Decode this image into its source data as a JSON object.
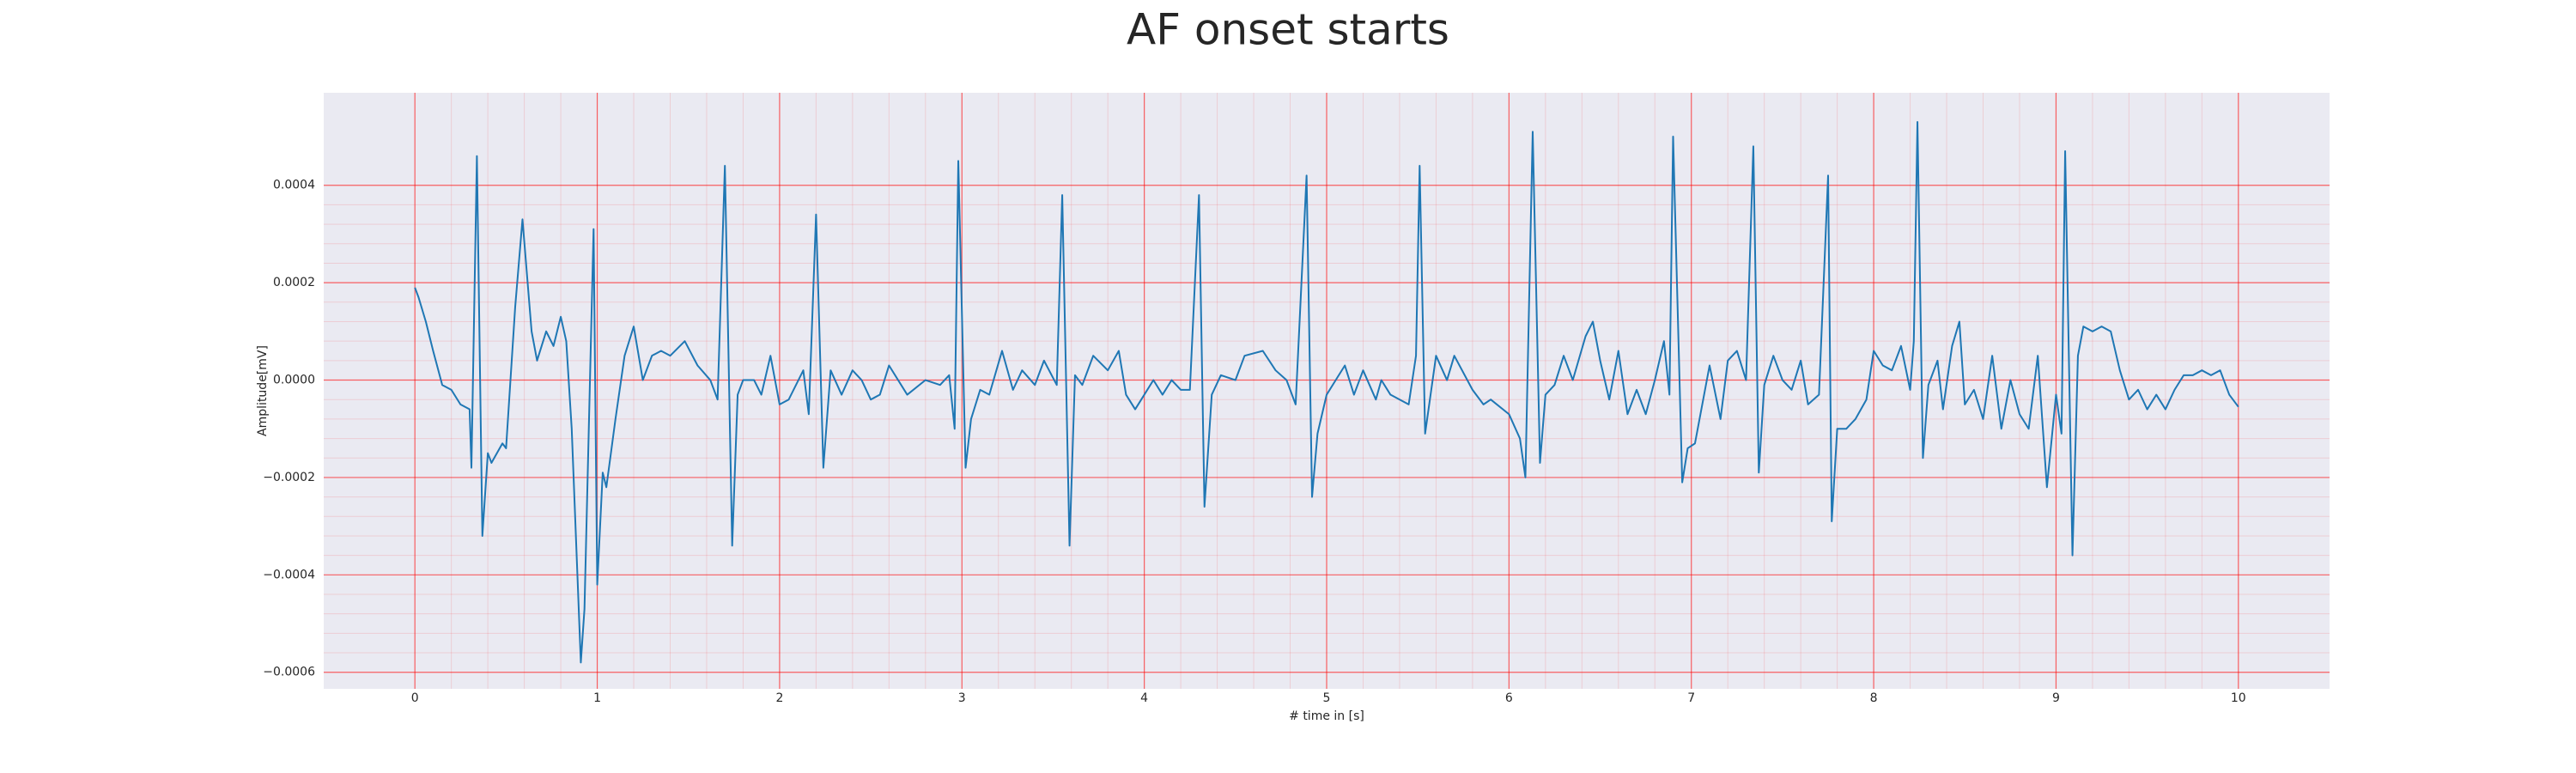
{
  "chart_data": {
    "type": "line",
    "title": "AF onset starts",
    "xlabel": "# time in [s]",
    "ylabel": "Amplitude[mV]",
    "color": "#1f77b4",
    "background": "#eaeaf2",
    "grid": true,
    "grid_color": "#ff0000",
    "minor_grid": true,
    "xlim": [
      -0.5,
      10.5
    ],
    "ylim": [
      -0.000634,
      0.00059
    ],
    "xticks": [
      0,
      1,
      2,
      3,
      4,
      5,
      6,
      7,
      8,
      9,
      10
    ],
    "yticks": [
      {
        "value": -0.0006,
        "label": "−0.0006"
      },
      {
        "value": -0.0004,
        "label": "−0.0004"
      },
      {
        "value": -0.0002,
        "label": "−0.0002"
      },
      {
        "value": 0,
        "label": "0.0000"
      },
      0.0002,
      0.0004
    ],
    "x": [
      0,
      0.02,
      0.06,
      0.1,
      0.15,
      0.2,
      0.25,
      0.3,
      0.31,
      0.34,
      0.37,
      0.4,
      0.42,
      0.48,
      0.5,
      0.55,
      0.59,
      0.64,
      0.67,
      0.72,
      0.76,
      0.8,
      0.83,
      0.86,
      0.91,
      0.93,
      0.98,
      1.0,
      1.03,
      1.05,
      1.1,
      1.15,
      1.2,
      1.25,
      1.3,
      1.35,
      1.4,
      1.48,
      1.55,
      1.62,
      1.66,
      1.7,
      1.74,
      1.77,
      1.8,
      1.86,
      1.9,
      1.95,
      2.0,
      2.05,
      2.13,
      2.16,
      2.2,
      2.24,
      2.28,
      2.34,
      2.4,
      2.45,
      2.5,
      2.55,
      2.6,
      2.7,
      2.8,
      2.88,
      2.93,
      2.96,
      2.98,
      3.02,
      3.05,
      3.1,
      3.15,
      3.22,
      3.28,
      3.33,
      3.4,
      3.45,
      3.52,
      3.55,
      3.59,
      3.62,
      3.66,
      3.72,
      3.8,
      3.86,
      3.9,
      3.95,
      4.0,
      4.05,
      4.1,
      4.15,
      4.2,
      4.25,
      4.3,
      4.33,
      4.37,
      4.42,
      4.5,
      4.55,
      4.65,
      4.72,
      4.78,
      4.83,
      4.89,
      4.92,
      4.95,
      5.0,
      5.05,
      5.1,
      5.15,
      5.2,
      5.27,
      5.3,
      5.35,
      5.45,
      5.49,
      5.51,
      5.54,
      5.6,
      5.66,
      5.7,
      5.8,
      5.86,
      5.9,
      6.0,
      6.06,
      6.09,
      6.13,
      6.17,
      6.2,
      6.25,
      6.3,
      6.35,
      6.42,
      6.46,
      6.5,
      6.55,
      6.6,
      6.65,
      6.7,
      6.75,
      6.8,
      6.85,
      6.88,
      6.9,
      6.95,
      6.98,
      7.02,
      7.08,
      7.1,
      7.16,
      7.2,
      7.25,
      7.3,
      7.34,
      7.37,
      7.4,
      7.45,
      7.5,
      7.55,
      7.6,
      7.64,
      7.7,
      7.75,
      7.77,
      7.8,
      7.85,
      7.9,
      7.96,
      8.0,
      8.05,
      8.1,
      8.15,
      8.2,
      8.22,
      8.24,
      8.27,
      8.3,
      8.35,
      8.38,
      8.43,
      8.47,
      8.5,
      8.55,
      8.6,
      8.65,
      8.7,
      8.75,
      8.8,
      8.85,
      8.9,
      8.95,
      9.0,
      9.03,
      9.05,
      9.09,
      9.12,
      9.15,
      9.2,
      9.25,
      9.3,
      9.35,
      9.4,
      9.45,
      9.5,
      9.55,
      9.6,
      9.65,
      9.7,
      9.75,
      9.8,
      9.85,
      9.9,
      9.95,
      10.0
    ],
    "values": [
      0.00019,
      0.00017,
      0.00012,
      6e-05,
      -1e-05,
      -2e-05,
      -5e-05,
      -6e-05,
      -0.00018,
      0.00046,
      -0.00032,
      -0.00015,
      -0.00017,
      -0.00013,
      -0.00014,
      0.00015,
      0.00033,
      0.0001,
      4e-05,
      0.0001,
      7e-05,
      0.00013,
      8e-05,
      -0.0001,
      -0.00058,
      -0.00047,
      0.00031,
      -0.00042,
      -0.00019,
      -0.00022,
      -8e-05,
      5e-05,
      0.00011,
      0,
      5e-05,
      6e-05,
      5e-05,
      8e-05,
      3e-05,
      0,
      -4e-05,
      0.00044,
      -0.00034,
      -3e-05,
      0,
      0,
      -3e-05,
      5e-05,
      -5e-05,
      -4e-05,
      2e-05,
      -7e-05,
      0.00034,
      -0.00018,
      2e-05,
      -3e-05,
      2e-05,
      0,
      -4e-05,
      -3e-05,
      3e-05,
      -3e-05,
      0,
      -1e-05,
      1e-05,
      -0.0001,
      0.00045,
      -0.00018,
      -8e-05,
      -2e-05,
      -3e-05,
      6e-05,
      -2e-05,
      2e-05,
      -1e-05,
      4e-05,
      -1e-05,
      0.00038,
      -0.00034,
      1e-05,
      -1e-05,
      5e-05,
      2e-05,
      6e-05,
      -3e-05,
      -6e-05,
      -3e-05,
      0,
      -3e-05,
      0,
      -2e-05,
      -2e-05,
      0.00038,
      -0.00026,
      -3e-05,
      1e-05,
      0,
      5e-05,
      6e-05,
      2e-05,
      0,
      -5e-05,
      0.00042,
      -0.00024,
      -0.00011,
      -3e-05,
      0,
      3e-05,
      -3e-05,
      2e-05,
      -4e-05,
      0,
      -3e-05,
      -5e-05,
      5e-05,
      0.00044,
      -0.00011,
      5e-05,
      0,
      5e-05,
      -2e-05,
      -5e-05,
      -4e-05,
      -7e-05,
      -0.00012,
      -0.0002,
      0.00051,
      -0.00017,
      -3e-05,
      -1e-05,
      5e-05,
      0,
      9e-05,
      0.00012,
      4e-05,
      -4e-05,
      6e-05,
      -7e-05,
      -2e-05,
      -7e-05,
      0,
      8e-05,
      -3e-05,
      0.0005,
      -0.00021,
      -0.00014,
      -0.00013,
      -1e-05,
      3e-05,
      -8e-05,
      4e-05,
      6e-05,
      0,
      0.00048,
      -0.00019,
      -1e-05,
      5e-05,
      0,
      -2e-05,
      4e-05,
      -5e-05,
      -3e-05,
      0.00042,
      -0.00029,
      -0.0001,
      -0.0001,
      -8e-05,
      -4e-05,
      6e-05,
      3e-05,
      2e-05,
      7e-05,
      -2e-05,
      8e-05,
      0.00053,
      -0.00016,
      -1e-05,
      4e-05,
      -6e-05,
      7e-05,
      0.00012,
      -5e-05,
      -2e-05,
      -8e-05,
      5e-05,
      -0.0001,
      0,
      -7e-05,
      -0.0001,
      5e-05,
      -0.00022,
      -3e-05,
      -0.00011,
      0.00047,
      -0.00036,
      5e-05,
      0.00011,
      0.0001,
      0.00011,
      0.0001,
      2e-05,
      -4e-05,
      -2e-05,
      -6e-05,
      -3e-05,
      -6e-05,
      -2e-05,
      1e-05,
      1e-05,
      2e-05,
      1e-05,
      2e-05,
      -3e-05,
      -5.5e-05
    ]
  }
}
